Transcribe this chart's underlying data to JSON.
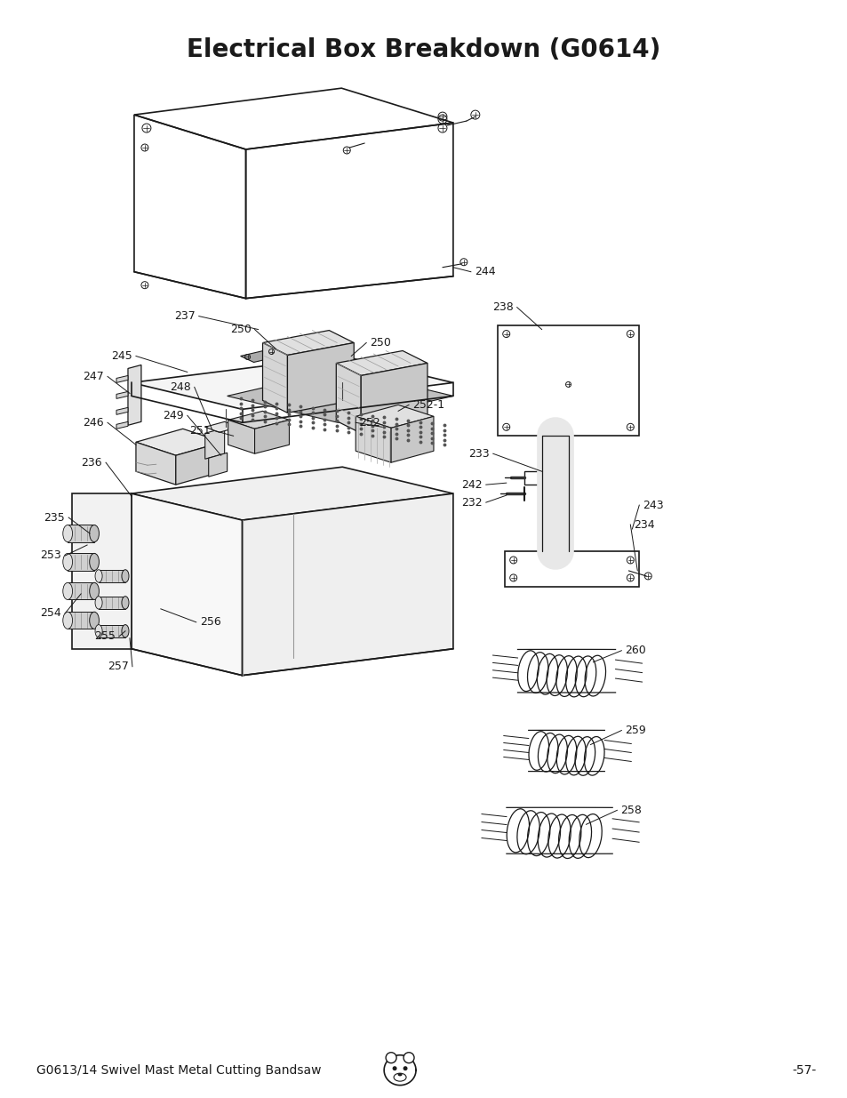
{
  "title": "Electrical Box Breakdown (G0614)",
  "title_fontsize": 20,
  "title_fontweight": "bold",
  "footer_left": "G0613/14 Swivel Mast Metal Cutting Bandsaw",
  "footer_right": "-57-",
  "footer_fontsize": 10,
  "bg_color": "#ffffff",
  "line_color": "#1a1a1a",
  "figsize": [
    9.54,
    12.35
  ],
  "dpi": 100,
  "label_fontsize": 9
}
